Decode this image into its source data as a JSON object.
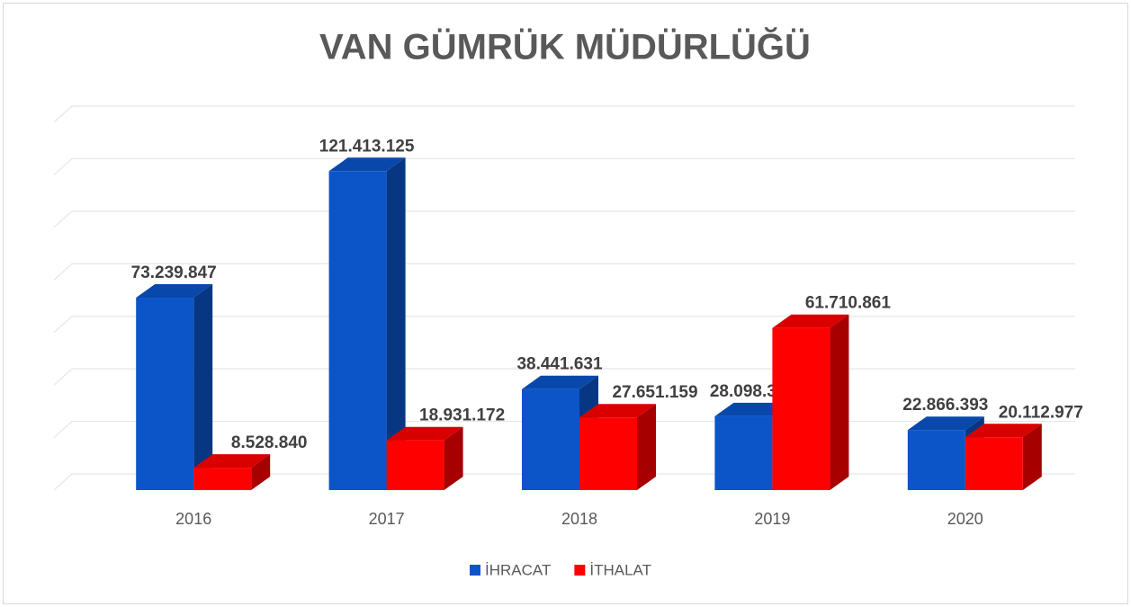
{
  "chart_data": {
    "type": "bar3d",
    "title": "VAN GÜMRÜK MÜDÜRLÜĞÜ",
    "categories": [
      "2016",
      "2017",
      "2018",
      "2019",
      "2020"
    ],
    "series": [
      {
        "name": "İHRACAT",
        "color": "#0b55c9",
        "values": [
          73239847,
          121413125,
          38441631,
          28098357,
          22866393
        ],
        "value_labels": [
          "73.239.847",
          "121.413.125",
          "38.441.631",
          "28.098.357",
          "22.866.393"
        ]
      },
      {
        "name": "İTHALAT",
        "color": "#ff0000",
        "values": [
          8528840,
          18931172,
          27651159,
          61710861,
          20112977
        ],
        "value_labels": [
          "8.528.840",
          "18.931.172",
          "27.651.159",
          "61.710.861",
          "20.112.977"
        ]
      }
    ],
    "ylim": [
      0,
      140000000
    ],
    "yticks": [
      0,
      20000000,
      40000000,
      60000000,
      80000000,
      100000000,
      120000000,
      140000000
    ],
    "grid": true,
    "legend": "bottom"
  }
}
